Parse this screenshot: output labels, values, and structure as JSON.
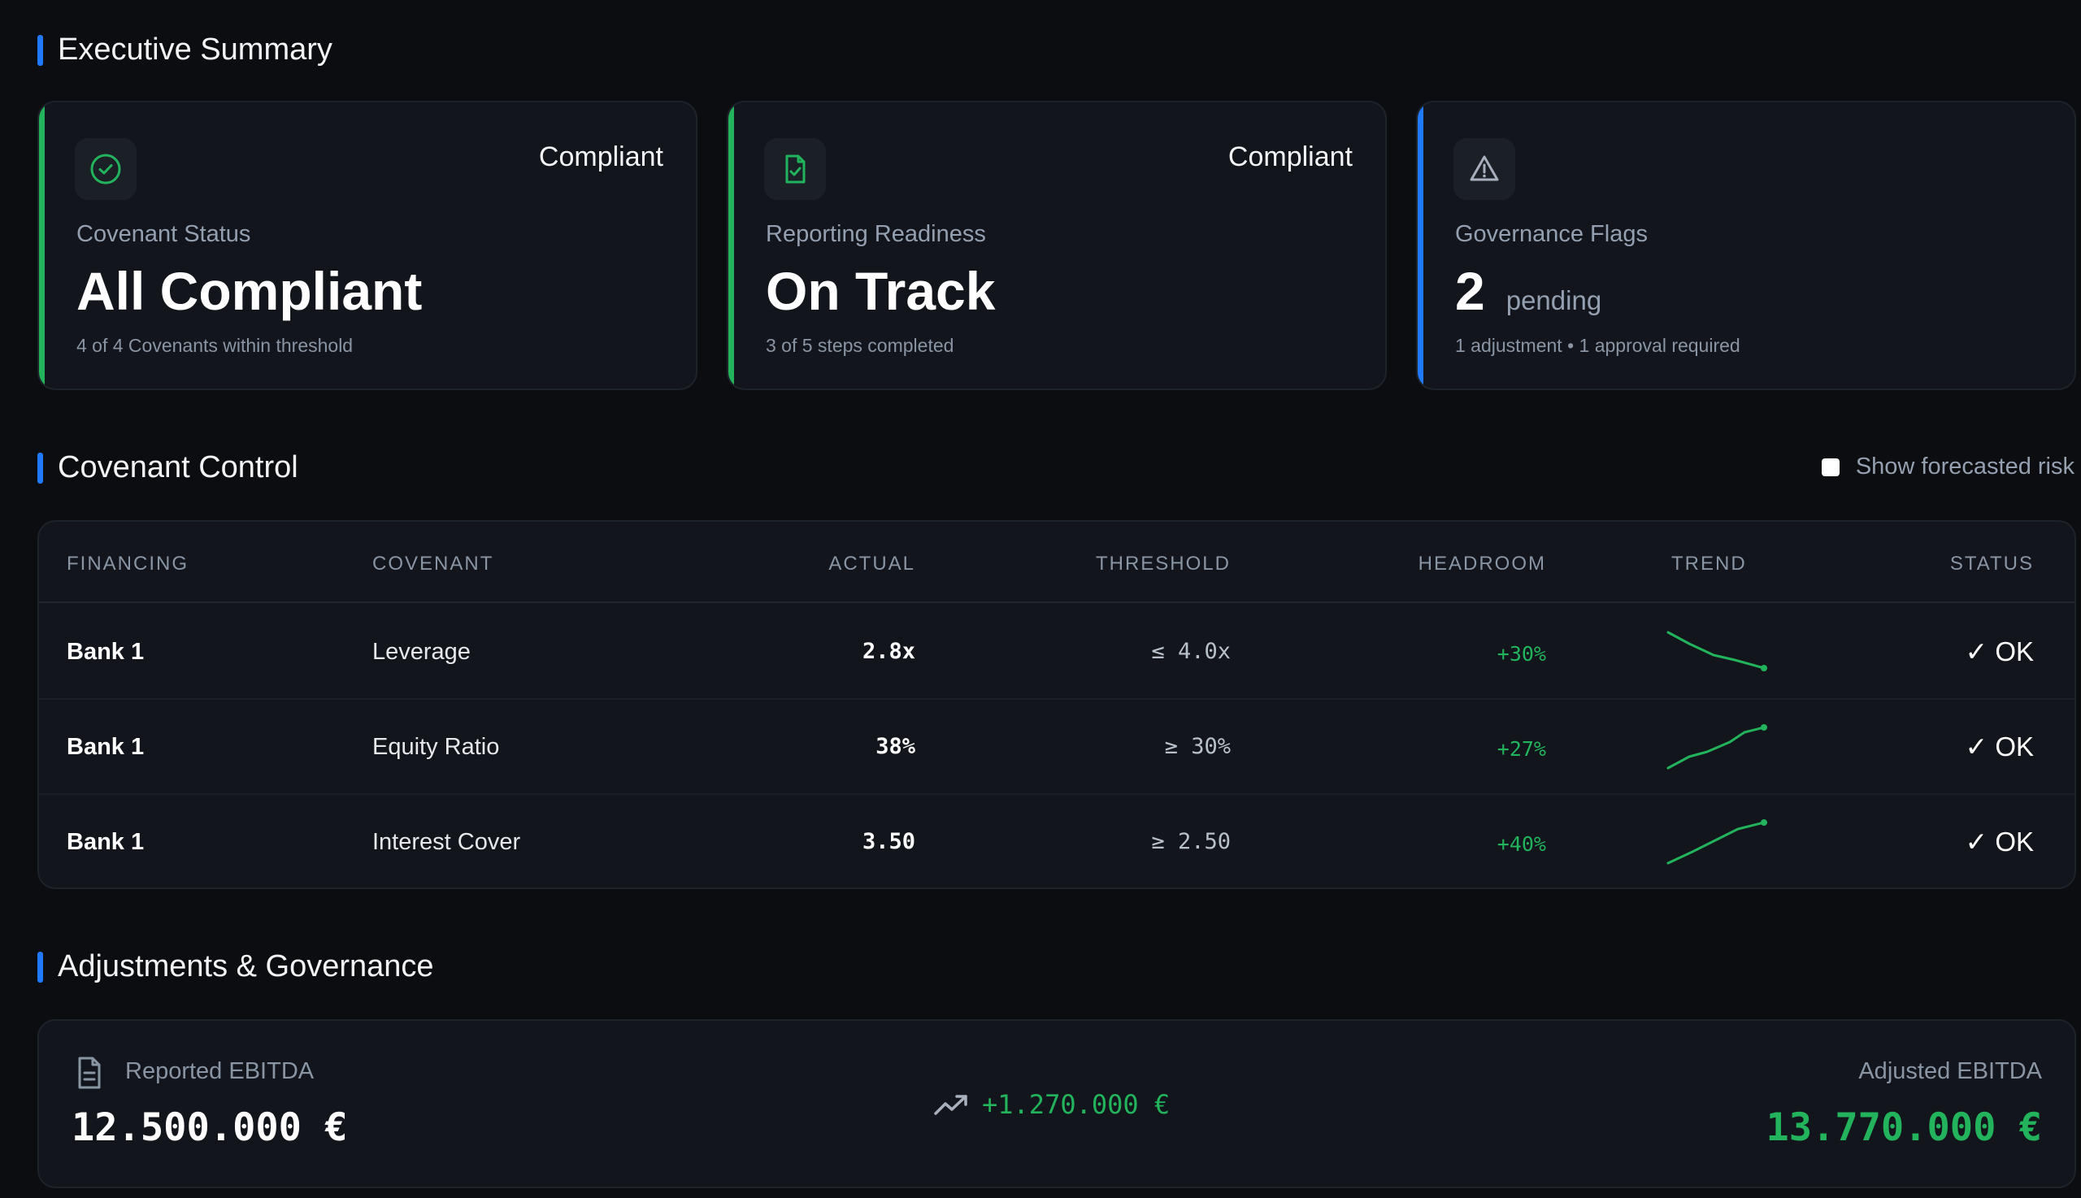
{
  "executive_summary": {
    "title": "Executive Summary",
    "cards": [
      {
        "state": "Compliant",
        "label": "Covenant Status",
        "value": "All Compliant",
        "unit": "",
        "sub": "4 of 4 Covenants within threshold",
        "accent": "#22b35c",
        "icon": "check-circle-icon"
      },
      {
        "state": "Compliant",
        "label": "Reporting Readiness",
        "value": "On Track",
        "unit": "",
        "sub": "3 of 5 steps completed",
        "accent": "#22b35c",
        "icon": "document-check-icon"
      },
      {
        "state": "",
        "label": "Governance Flags",
        "value": "2",
        "unit": "pending",
        "sub": "1 adjustment • 1 approval required",
        "accent": "#1f7aff",
        "icon": "warning-triangle-icon"
      }
    ]
  },
  "covenant_control": {
    "title": "Covenant Control",
    "forecast_toggle_label": "Show forecasted risk",
    "forecast_toggle_checked": false,
    "columns": [
      "FINANCING",
      "COVENANT",
      "ACTUAL",
      "THRESHOLD",
      "HEADROOM",
      "TREND",
      "STATUS"
    ],
    "rows": [
      {
        "financing": "Bank 1",
        "covenant": "Leverage",
        "actual": "2.8x",
        "threshold": "≤ 4.0x",
        "headroom": "+30%",
        "trend": "down",
        "status": "✓ OK"
      },
      {
        "financing": "Bank 1",
        "covenant": "Equity Ratio",
        "actual": "38%",
        "threshold": "≥ 30%",
        "headroom": "+27%",
        "trend": "up",
        "status": "✓ OK"
      },
      {
        "financing": "Bank 1",
        "covenant": "Interest Cover",
        "actual": "3.50",
        "threshold": "≥ 2.50",
        "headroom": "+40%",
        "trend": "up",
        "status": "✓ OK"
      }
    ]
  },
  "adjustments": {
    "title": "Adjustments & Governance",
    "reported_label": "Reported EBITDA",
    "reported_value": "12.500.000 €",
    "delta": "+1.270.000 €",
    "adjusted_label": "Adjusted EBITDA",
    "adjusted_value": "13.770.000 €"
  },
  "colors": {
    "accent_blue": "#1f7aff",
    "positive_green": "#22b35c",
    "background": "#0b0d10",
    "card": "#12161c"
  }
}
